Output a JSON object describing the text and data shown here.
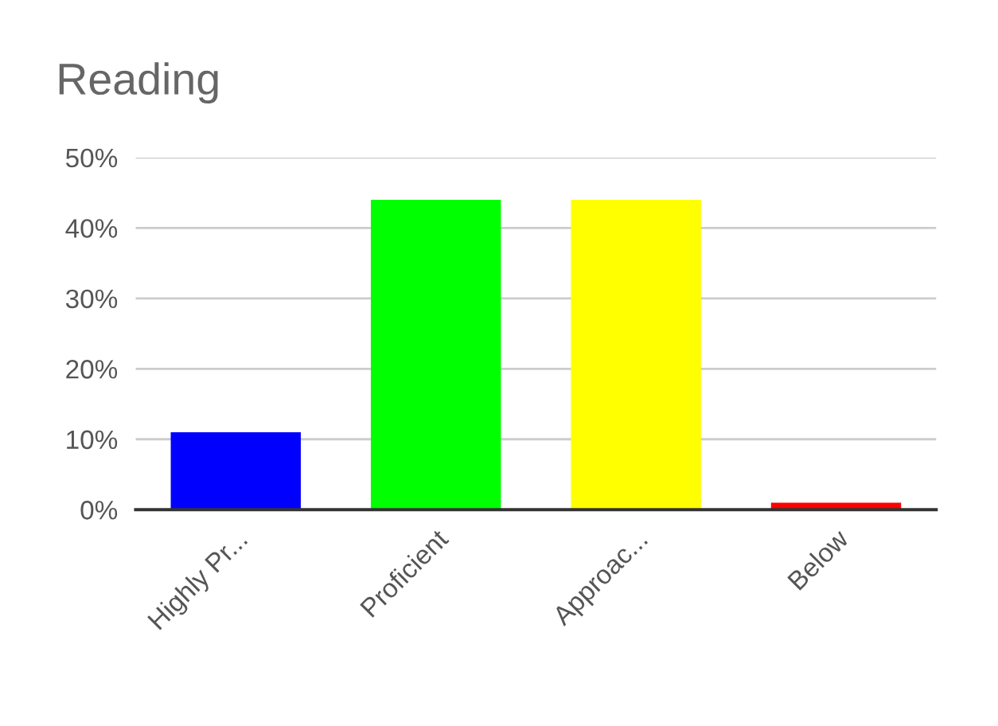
{
  "chart_data": {
    "type": "bar",
    "title": "Reading",
    "categories": [
      "Highly Pr...",
      "Proficient",
      "Approac...",
      "Below"
    ],
    "values": [
      11,
      44,
      44,
      1
    ],
    "colors": [
      "#0000ff",
      "#00ff00",
      "#ffff00",
      "#ff0000"
    ],
    "ylim": [
      0,
      50
    ],
    "yticks": [
      {
        "value": 0,
        "label": "0%"
      },
      {
        "value": 10,
        "label": "10%"
      },
      {
        "value": 20,
        "label": "20%"
      },
      {
        "value": 30,
        "label": "30%"
      },
      {
        "value": 40,
        "label": "40%"
      },
      {
        "value": 50,
        "label": "50%"
      }
    ],
    "grid": "y",
    "legend": false
  }
}
